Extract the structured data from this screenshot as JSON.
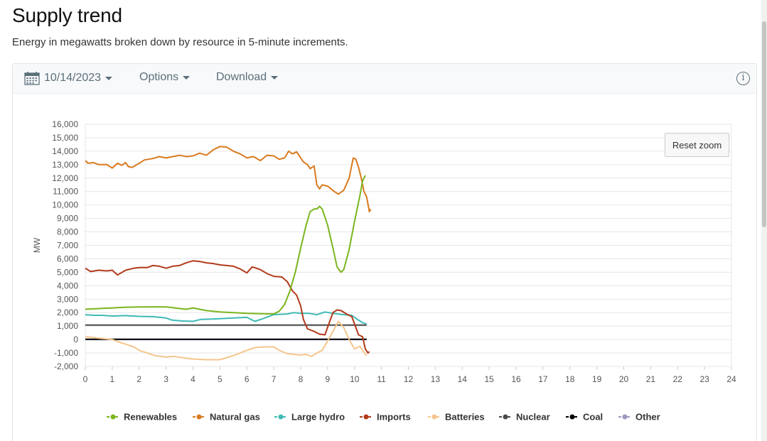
{
  "header": {
    "title": "Supply trend",
    "subtitle": "Energy in megawatts broken down by resource in 5-minute increments."
  },
  "toolbar": {
    "date": "10/14/2023",
    "options_label": "Options",
    "download_label": "Download",
    "info_icon": "info-icon",
    "calendar_icon": "calendar-icon"
  },
  "reset_zoom_label": "Reset zoom",
  "chart_data": {
    "type": "line",
    "ylabel": "MW",
    "xlabel": "",
    "xlim": [
      0,
      24
    ],
    "ylim": [
      -2000,
      16000
    ],
    "x_ticks": [
      0,
      1,
      2,
      3,
      4,
      5,
      6,
      7,
      8,
      9,
      10,
      11,
      12,
      13,
      14,
      15,
      16,
      17,
      18,
      19,
      20,
      21,
      22,
      23,
      24
    ],
    "y_ticks": [
      -2000,
      -1000,
      0,
      1000,
      2000,
      3000,
      4000,
      5000,
      6000,
      7000,
      8000,
      9000,
      10000,
      11000,
      12000,
      13000,
      14000,
      15000,
      16000
    ],
    "y_tick_labels": [
      "-2,000",
      "-1,000",
      "0",
      "1,000",
      "2,000",
      "3,000",
      "4,000",
      "5,000",
      "6,000",
      "7,000",
      "8,000",
      "9,000",
      "10,000",
      "11,000",
      "12,000",
      "13,000",
      "14,000",
      "15,000",
      "16,000"
    ],
    "grid": true,
    "legend_position": "bottom",
    "series": [
      {
        "name": "Renewables",
        "color": "#7ab51d",
        "points": [
          [
            0,
            2250
          ],
          [
            0.5,
            2300
          ],
          [
            1,
            2350
          ],
          [
            1.5,
            2400
          ],
          [
            2,
            2420
          ],
          [
            2.5,
            2430
          ],
          [
            3,
            2430
          ],
          [
            3.5,
            2300
          ],
          [
            3.75,
            2250
          ],
          [
            4,
            2350
          ],
          [
            4.25,
            2250
          ],
          [
            4.5,
            2150
          ],
          [
            5,
            2050
          ],
          [
            5.5,
            2000
          ],
          [
            6,
            1950
          ],
          [
            6.5,
            1920
          ],
          [
            7,
            1900
          ],
          [
            7.2,
            2100
          ],
          [
            7.4,
            2600
          ],
          [
            7.6,
            3600
          ],
          [
            7.8,
            5000
          ],
          [
            8,
            6800
          ],
          [
            8.2,
            8500
          ],
          [
            8.35,
            9500
          ],
          [
            8.5,
            9700
          ],
          [
            8.6,
            9700
          ],
          [
            8.7,
            9900
          ],
          [
            8.8,
            9700
          ],
          [
            9,
            8500
          ],
          [
            9.2,
            6800
          ],
          [
            9.35,
            5400
          ],
          [
            9.5,
            5000
          ],
          [
            9.6,
            5200
          ],
          [
            9.8,
            6700
          ],
          [
            10,
            8800
          ],
          [
            10.2,
            10700
          ],
          [
            10.3,
            11800
          ],
          [
            10.4,
            12200
          ]
        ]
      },
      {
        "name": "Natural gas",
        "color": "#d97a1e",
        "points": [
          [
            0,
            13300
          ],
          [
            0.1,
            13100
          ],
          [
            0.3,
            13150
          ],
          [
            0.5,
            13000
          ],
          [
            0.8,
            13000
          ],
          [
            1,
            12750
          ],
          [
            1.2,
            13100
          ],
          [
            1.35,
            12950
          ],
          [
            1.5,
            13150
          ],
          [
            1.6,
            12850
          ],
          [
            1.75,
            12800
          ],
          [
            2,
            13100
          ],
          [
            2.2,
            13350
          ],
          [
            2.5,
            13450
          ],
          [
            2.75,
            13600
          ],
          [
            3,
            13500
          ],
          [
            3.25,
            13600
          ],
          [
            3.5,
            13700
          ],
          [
            3.75,
            13600
          ],
          [
            4,
            13650
          ],
          [
            4.25,
            13850
          ],
          [
            4.5,
            13700
          ],
          [
            4.75,
            14100
          ],
          [
            5,
            14350
          ],
          [
            5.25,
            14300
          ],
          [
            5.5,
            14000
          ],
          [
            5.75,
            13800
          ],
          [
            6,
            13500
          ],
          [
            6.25,
            13600
          ],
          [
            6.5,
            13300
          ],
          [
            6.75,
            13700
          ],
          [
            7,
            13650
          ],
          [
            7.2,
            13400
          ],
          [
            7.4,
            13500
          ],
          [
            7.55,
            14000
          ],
          [
            7.7,
            13800
          ],
          [
            7.85,
            13950
          ],
          [
            8,
            13500
          ],
          [
            8.1,
            13200
          ],
          [
            8.25,
            13000
          ],
          [
            8.35,
            12700
          ],
          [
            8.5,
            12900
          ],
          [
            8.6,
            11500
          ],
          [
            8.7,
            11200
          ],
          [
            8.8,
            11500
          ],
          [
            9,
            11400
          ],
          [
            9.25,
            11000
          ],
          [
            9.4,
            10800
          ],
          [
            9.6,
            11100
          ],
          [
            9.8,
            12000
          ],
          [
            9.95,
            13500
          ],
          [
            10.05,
            13400
          ],
          [
            10.15,
            12800
          ],
          [
            10.25,
            12000
          ],
          [
            10.35,
            11000
          ],
          [
            10.45,
            10600
          ],
          [
            10.55,
            9500
          ],
          [
            10.6,
            9700
          ]
        ]
      },
      {
        "name": "Large hydro",
        "color": "#3dbab5",
        "points": [
          [
            0,
            1850
          ],
          [
            0.3,
            1800
          ],
          [
            0.6,
            1800
          ],
          [
            1,
            1750
          ],
          [
            1.5,
            1780
          ],
          [
            2,
            1720
          ],
          [
            2.5,
            1700
          ],
          [
            3,
            1600
          ],
          [
            3.2,
            1450
          ],
          [
            3.6,
            1380
          ],
          [
            4,
            1350
          ],
          [
            4.3,
            1500
          ],
          [
            4.7,
            1520
          ],
          [
            5,
            1550
          ],
          [
            5.5,
            1600
          ],
          [
            6,
            1650
          ],
          [
            6.3,
            1350
          ],
          [
            6.6,
            1550
          ],
          [
            7,
            1850
          ],
          [
            7.5,
            1900
          ],
          [
            7.75,
            2000
          ],
          [
            8,
            1950
          ],
          [
            8.3,
            1950
          ],
          [
            8.6,
            1850
          ],
          [
            8.9,
            2050
          ],
          [
            9.2,
            1950
          ],
          [
            9.6,
            1850
          ],
          [
            9.9,
            1800
          ],
          [
            10.1,
            1500
          ],
          [
            10.3,
            1250
          ],
          [
            10.45,
            1150
          ]
        ]
      },
      {
        "name": "Imports",
        "color": "#b23a1a",
        "points": [
          [
            0,
            5300
          ],
          [
            0.2,
            5050
          ],
          [
            0.5,
            5150
          ],
          [
            0.8,
            5100
          ],
          [
            1,
            5150
          ],
          [
            1.2,
            4800
          ],
          [
            1.5,
            5150
          ],
          [
            1.8,
            5300
          ],
          [
            2,
            5350
          ],
          [
            2.3,
            5350
          ],
          [
            2.5,
            5500
          ],
          [
            2.75,
            5450
          ],
          [
            3,
            5300
          ],
          [
            3.25,
            5450
          ],
          [
            3.5,
            5500
          ],
          [
            3.75,
            5700
          ],
          [
            4,
            5850
          ],
          [
            4.25,
            5800
          ],
          [
            4.5,
            5700
          ],
          [
            4.75,
            5650
          ],
          [
            5,
            5550
          ],
          [
            5.25,
            5500
          ],
          [
            5.5,
            5450
          ],
          [
            5.75,
            5250
          ],
          [
            6,
            4950
          ],
          [
            6.2,
            5400
          ],
          [
            6.5,
            5200
          ],
          [
            6.75,
            4900
          ],
          [
            7,
            4700
          ],
          [
            7.3,
            4650
          ],
          [
            7.5,
            4300
          ],
          [
            7.7,
            3600
          ],
          [
            7.85,
            3300
          ],
          [
            8,
            2500
          ],
          [
            8.1,
            1500
          ],
          [
            8.25,
            800
          ],
          [
            8.5,
            600
          ],
          [
            8.7,
            400
          ],
          [
            8.9,
            350
          ],
          [
            9.05,
            1200
          ],
          [
            9.2,
            2000
          ],
          [
            9.35,
            2200
          ],
          [
            9.5,
            2150
          ],
          [
            9.7,
            1900
          ],
          [
            9.9,
            1700
          ],
          [
            10.05,
            900
          ],
          [
            10.15,
            350
          ],
          [
            10.3,
            200
          ],
          [
            10.4,
            -700
          ],
          [
            10.5,
            -1000
          ],
          [
            10.55,
            -900
          ]
        ]
      },
      {
        "name": "Batteries",
        "color": "#f5c58c",
        "points": [
          [
            0,
            200
          ],
          [
            0.2,
            180
          ],
          [
            0.5,
            100
          ],
          [
            0.8,
            50
          ],
          [
            1,
            0
          ],
          [
            1.2,
            -150
          ],
          [
            1.5,
            -350
          ],
          [
            1.8,
            -550
          ],
          [
            2,
            -800
          ],
          [
            2.3,
            -1000
          ],
          [
            2.6,
            -1200
          ],
          [
            3,
            -1300
          ],
          [
            3.3,
            -1250
          ],
          [
            3.6,
            -1350
          ],
          [
            4,
            -1450
          ],
          [
            4.5,
            -1500
          ],
          [
            5,
            -1500
          ],
          [
            5.5,
            -1200
          ],
          [
            6,
            -800
          ],
          [
            6.3,
            -600
          ],
          [
            6.6,
            -550
          ],
          [
            7,
            -550
          ],
          [
            7.2,
            -800
          ],
          [
            7.5,
            -1050
          ],
          [
            7.7,
            -1100
          ],
          [
            8,
            -1150
          ],
          [
            8.2,
            -1100
          ],
          [
            8.4,
            -1250
          ],
          [
            8.6,
            -1000
          ],
          [
            8.8,
            -800
          ],
          [
            9,
            -100
          ],
          [
            9.2,
            600
          ],
          [
            9.4,
            1350
          ],
          [
            9.6,
            900
          ],
          [
            9.8,
            0
          ],
          [
            10,
            -700
          ],
          [
            10.2,
            -500
          ],
          [
            10.3,
            -800
          ],
          [
            10.45,
            -1200
          ]
        ]
      },
      {
        "name": "Nuclear",
        "color": "#4a4a4a",
        "points": [
          [
            0,
            1080
          ],
          [
            10.45,
            1080
          ]
        ]
      },
      {
        "name": "Coal",
        "color": "#000000",
        "points": [
          [
            0,
            15
          ],
          [
            10.45,
            15
          ]
        ]
      },
      {
        "name": "Other",
        "color": "#9f95c0",
        "points": [
          [
            0,
            0
          ],
          [
            10.45,
            0
          ]
        ]
      }
    ]
  }
}
